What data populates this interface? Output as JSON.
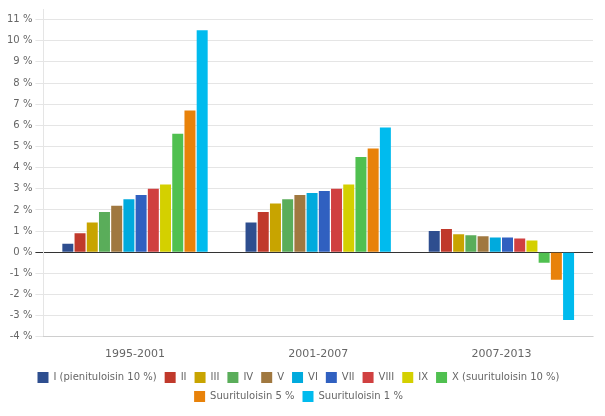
{
  "chart_data": {
    "type": "bar",
    "categories": [
      "1995-2001",
      "2001-2007",
      "2007-2013"
    ],
    "series": [
      {
        "name": "I (pienituloisin 10 %)",
        "color": "#2e4e8f",
        "values": [
          0.4,
          1.4,
          1.0
        ]
      },
      {
        "name": "II",
        "color": "#c0392b",
        "values": [
          0.9,
          1.9,
          1.1
        ]
      },
      {
        "name": "III",
        "color": "#c8a400",
        "values": [
          1.4,
          2.3,
          0.85
        ]
      },
      {
        "name": "IV",
        "color": "#5aad5a",
        "values": [
          1.9,
          2.5,
          0.8
        ]
      },
      {
        "name": "V",
        "color": "#a07840",
        "values": [
          2.2,
          2.7,
          0.75
        ]
      },
      {
        "name": "VI",
        "color": "#00aadd",
        "values": [
          2.5,
          2.8,
          0.7
        ]
      },
      {
        "name": "VII",
        "color": "#3060c0",
        "values": [
          2.7,
          2.9,
          0.7
        ]
      },
      {
        "name": "VIII",
        "color": "#d04040",
        "values": [
          3.0,
          3.0,
          0.65
        ]
      },
      {
        "name": "IX",
        "color": "#d4d000",
        "values": [
          3.2,
          3.2,
          0.55
        ]
      },
      {
        "name": "X (suurituloisin 10 %)",
        "color": "#50c050",
        "values": [
          5.6,
          4.5,
          -0.5
        ]
      },
      {
        "name": "Suurituloisin 5 %",
        "color": "#e8820a",
        "values": [
          6.7,
          4.9,
          -1.3
        ]
      },
      {
        "name": "Suurituloisin 1 %",
        "color": "#00bbee",
        "values": [
          10.5,
          5.9,
          -3.2
        ]
      }
    ],
    "ylim": [
      -4.0,
      11.5
    ],
    "yticks": [
      {
        "value": -4.0,
        "label": "-4 %"
      },
      {
        "value": -3.0,
        "label": "-3 %"
      },
      {
        "value": -2.0,
        "label": "-2 %"
      },
      {
        "value": -1.0,
        "label": "-1 %"
      },
      {
        "value": 0.0,
        "label": "0 %"
      },
      {
        "value": 1.0,
        "label": "1 %"
      },
      {
        "value": 2.0,
        "label": "2 %"
      },
      {
        "value": 3.0,
        "label": "3 %"
      },
      {
        "value": 4.0,
        "label": "4 %"
      },
      {
        "value": 5.0,
        "label": "5 %"
      },
      {
        "value": 6.0,
        "label": "6 %"
      },
      {
        "value": 7.0,
        "label": "7 %"
      },
      {
        "value": 8.0,
        "label": "8 %"
      },
      {
        "value": 9.0,
        "label": "9 %"
      },
      {
        "value": 10.0,
        "label": "10 %"
      },
      {
        "value": 11.0,
        "label": "11 %"
      }
    ],
    "grid": true,
    "legend": "bottom"
  }
}
